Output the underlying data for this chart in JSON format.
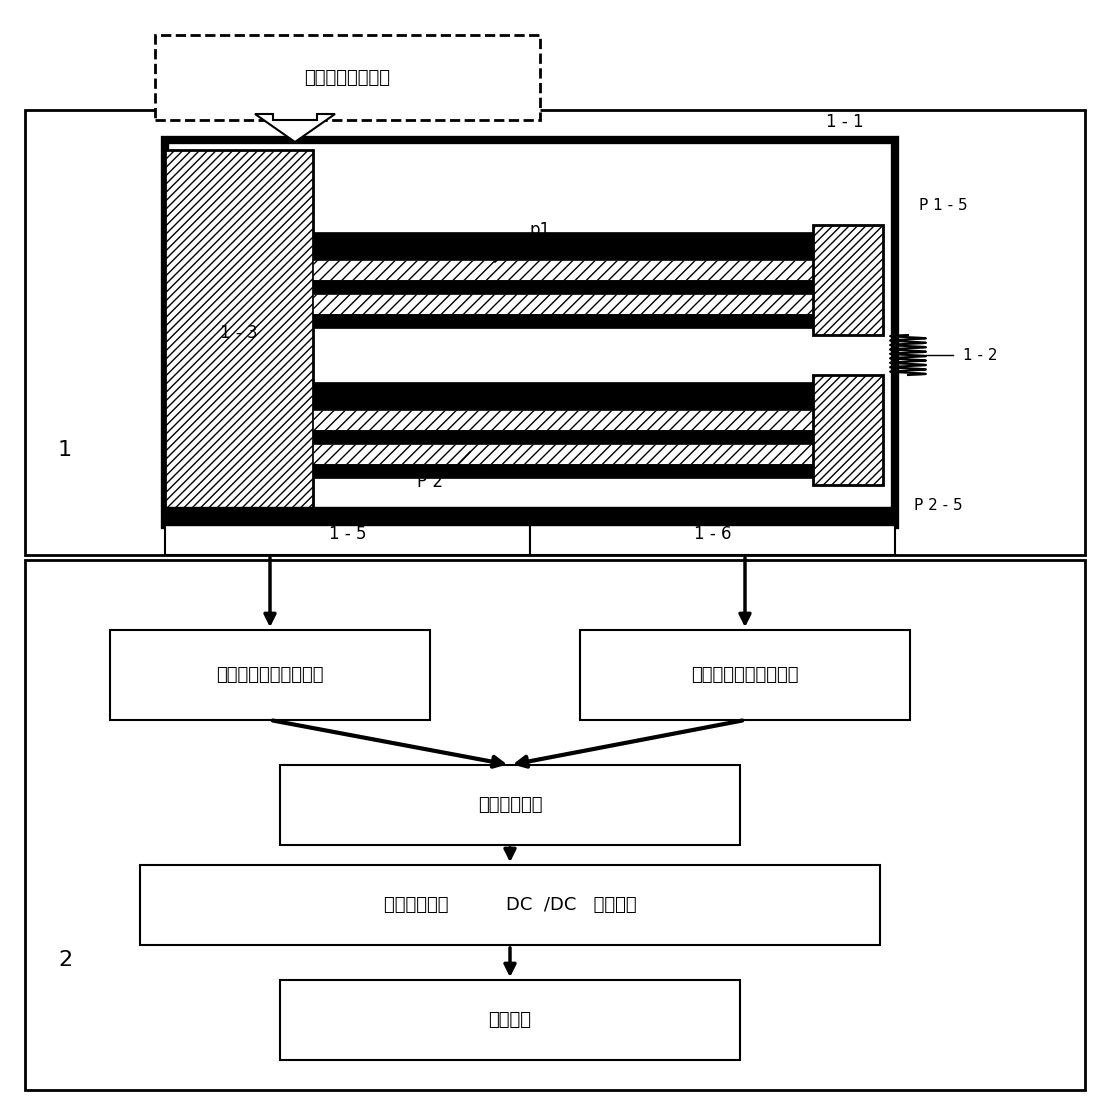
{
  "bg_color": "#ffffff",
  "dashed_box_text": "外部环境振动激励",
  "label_1": "1",
  "label_2": "2",
  "label_1_1": "1 - 1",
  "label_1_2": "1 - 2",
  "label_1_3": "1 - 3",
  "label_1_5": "1 - 5",
  "label_1_6": "1 - 6",
  "label_p1_5": "P 1 - 5",
  "label_p2_5": "P 2 - 5",
  "label_p1": "p1",
  "label_p2": "P 2",
  "box1_text": "第一同步电荷转移模块",
  "box2_text": "第二同步电荷转移模块",
  "box3_text": "电荷汇集电容",
  "box4_text": "可控电压阈值          DC  /DC   转换模块",
  "box5_text": "储能器件"
}
